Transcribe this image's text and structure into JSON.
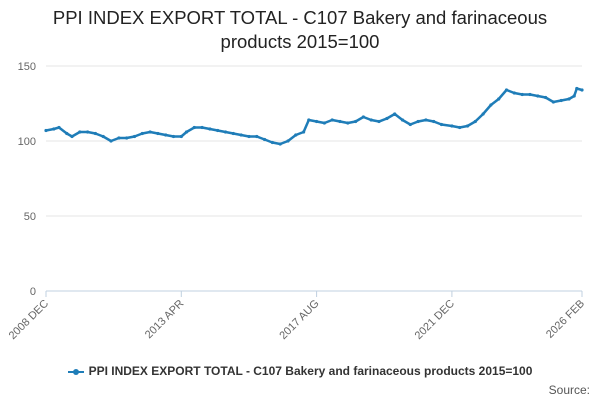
{
  "title_line1": "PPI INDEX EXPORT TOTAL - C107 Bakery and farinaceous",
  "title_line2": "products 2015=100",
  "credit": "Source:",
  "colors": {
    "series": "#1f7db8",
    "grid": "#e6e6e6",
    "axis": "#c0d0e0",
    "tick_label": "#666666"
  },
  "chart_data": {
    "type": "line",
    "title": "PPI INDEX EXPORT TOTAL - C107 Bakery and farinaceous products 2015=100",
    "xlabel": "",
    "ylabel": "",
    "ylim": [
      0,
      150
    ],
    "yticks": [
      0,
      50,
      100,
      150
    ],
    "xticks": [
      "2008 DEC",
      "2013 APR",
      "2017 AUG",
      "2021 DEC",
      "2026 FEB"
    ],
    "xrange": [
      "2008 DEC",
      "2026 FEB"
    ],
    "grid": true,
    "legend": "bottom",
    "series": [
      {
        "name": "PPI INDEX EXPORT TOTAL - C107 Bakery and farinaceous products 2015=100",
        "points": [
          [
            "2008 DEC",
            107
          ],
          [
            "2009 MAR",
            108
          ],
          [
            "2009 MAY",
            109
          ],
          [
            "2009 AUG",
            105
          ],
          [
            "2009 OCT",
            103
          ],
          [
            "2010 JAN",
            106
          ],
          [
            "2010 APR",
            106
          ],
          [
            "2010 JUL",
            105
          ],
          [
            "2010 OCT",
            103
          ],
          [
            "2011 JAN",
            100
          ],
          [
            "2011 APR",
            102
          ],
          [
            "2011 JUL",
            102
          ],
          [
            "2011 OCT",
            103
          ],
          [
            "2012 JAN",
            105
          ],
          [
            "2012 APR",
            106
          ],
          [
            "2012 JUL",
            105
          ],
          [
            "2012 OCT",
            104
          ],
          [
            "2013 JAN",
            103
          ],
          [
            "2013 APR",
            103
          ],
          [
            "2013 JUN",
            106
          ],
          [
            "2013 SEP",
            109
          ],
          [
            "2013 DEC",
            109
          ],
          [
            "2014 MAR",
            108
          ],
          [
            "2014 JUN",
            107
          ],
          [
            "2014 SEP",
            106
          ],
          [
            "2014 DEC",
            105
          ],
          [
            "2015 MAR",
            104
          ],
          [
            "2015 JUN",
            103
          ],
          [
            "2015 SEP",
            103
          ],
          [
            "2015 DEC",
            101
          ],
          [
            "2016 MAR",
            99
          ],
          [
            "2016 JUN",
            98
          ],
          [
            "2016 SEP",
            100
          ],
          [
            "2016 DEC",
            104
          ],
          [
            "2017 MAR",
            106
          ],
          [
            "2017 MAY",
            114
          ],
          [
            "2017 AUG",
            113
          ],
          [
            "2017 NOV",
            112
          ],
          [
            "2018 FEB",
            114
          ],
          [
            "2018 MAY",
            113
          ],
          [
            "2018 AUG",
            112
          ],
          [
            "2018 NOV",
            113
          ],
          [
            "2019 FEB",
            116
          ],
          [
            "2019 MAY",
            114
          ],
          [
            "2019 AUG",
            113
          ],
          [
            "2019 NOV",
            115
          ],
          [
            "2020 FEB",
            118
          ],
          [
            "2020 MAY",
            114
          ],
          [
            "2020 AUG",
            111
          ],
          [
            "2020 NOV",
            113
          ],
          [
            "2021 FEB",
            114
          ],
          [
            "2021 MAY",
            113
          ],
          [
            "2021 AUG",
            111
          ],
          [
            "2021 DEC",
            110
          ],
          [
            "2022 MAR",
            109
          ],
          [
            "2022 JUN",
            110
          ],
          [
            "2022 SEP",
            113
          ],
          [
            "2022 DEC",
            118
          ],
          [
            "2023 MAR",
            124
          ],
          [
            "2023 JUN",
            128
          ],
          [
            "2023 SEP",
            134
          ],
          [
            "2023 DEC",
            132
          ],
          [
            "2024 MAR",
            131
          ],
          [
            "2024 JUN",
            131
          ],
          [
            "2024 SEP",
            130
          ],
          [
            "2024 DEC",
            129
          ],
          [
            "2025 MAR",
            126
          ],
          [
            "2025 JUN",
            127
          ],
          [
            "2025 SEP",
            128
          ],
          [
            "2025 NOV",
            130
          ],
          [
            "2025 DEC",
            135
          ],
          [
            "2026 FEB",
            134
          ]
        ]
      }
    ]
  }
}
